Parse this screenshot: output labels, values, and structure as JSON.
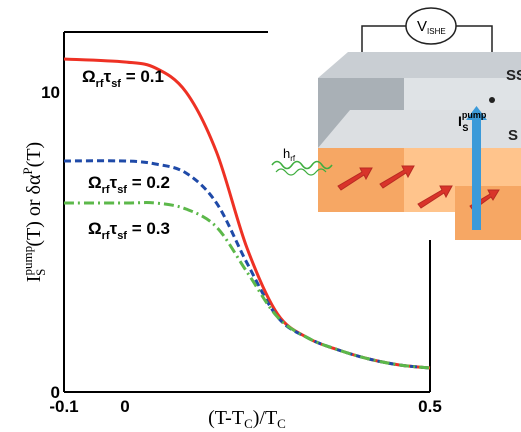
{
  "chart_data": {
    "type": "line",
    "title": "",
    "xlabel": "(T-T_C)/T_C",
    "ylabel": "I_S^pump(T) or δα^P(T)",
    "x_ticks": [
      "-0.1",
      "0",
      "0.5"
    ],
    "x_tick_values": [
      -0.1,
      0,
      0.5
    ],
    "y_ticks": [
      "0",
      "10"
    ],
    "y_tick_values": [
      0,
      10
    ],
    "xlim": [
      -0.1,
      0.5
    ],
    "ylim": [
      0,
      12
    ],
    "grid": false,
    "series": [
      {
        "name": "Ω_rf τ_sf = 0.1",
        "color": "#ee3124",
        "dash": "solid",
        "x": [
          -0.1,
          0.0,
          0.05,
          0.1,
          0.15,
          0.2,
          0.25,
          0.3,
          0.35,
          0.4,
          0.45,
          0.5
        ],
        "y": [
          11.1,
          11.0,
          10.8,
          10.0,
          8.0,
          4.8,
          2.6,
          1.8,
          1.4,
          1.1,
          0.9,
          0.8
        ]
      },
      {
        "name": "Ω_rf τ_sf = 0.2",
        "color": "#1f4aa8",
        "dash": "dashed",
        "x": [
          -0.1,
          0.0,
          0.05,
          0.1,
          0.15,
          0.2,
          0.25,
          0.3,
          0.35,
          0.4,
          0.45,
          0.5
        ],
        "y": [
          7.7,
          7.7,
          7.6,
          7.3,
          6.3,
          4.3,
          2.5,
          1.8,
          1.4,
          1.1,
          0.9,
          0.8
        ]
      },
      {
        "name": "Ω_rf τ_sf = 0.3",
        "color": "#5cb84a",
        "dash": "dashdot",
        "x": [
          -0.1,
          0.0,
          0.05,
          0.1,
          0.15,
          0.2,
          0.25,
          0.3,
          0.35,
          0.4,
          0.45,
          0.5
        ],
        "y": [
          6.3,
          6.3,
          6.3,
          6.1,
          5.5,
          4.0,
          2.5,
          1.8,
          1.4,
          1.1,
          0.9,
          0.8
        ]
      }
    ],
    "series_labels": [
      {
        "main": "Ω",
        "sub1": "rf",
        "mid": "τ",
        "sub2": "sf",
        "tail": " = 0.1"
      },
      {
        "main": "Ω",
        "sub1": "rf",
        "mid": "τ",
        "sub2": "sf",
        "tail": " = 0.2"
      },
      {
        "main": "Ω",
        "sub1": "rf",
        "mid": "τ",
        "sub2": "sf",
        "tail": " = 0.3"
      }
    ],
    "inset": {
      "v_label": "V",
      "v_sub": "ISHE",
      "top_layer_label": "SS",
      "bottom_layer_label": "S",
      "h_label": "h",
      "h_sub": "rf",
      "i_label": "I",
      "i_sub": "S",
      "i_sup": "pump",
      "colors": {
        "top_layer": "#b8bec4",
        "top_layer_dark": "#8e969d",
        "bottom_layer": "#f4a25f",
        "bottom_layer_dark": "#e58a3f",
        "arrow_red": "#d9342a",
        "arrow_blue": "#3b9ad9",
        "wave": "#3fae3f"
      }
    }
  }
}
